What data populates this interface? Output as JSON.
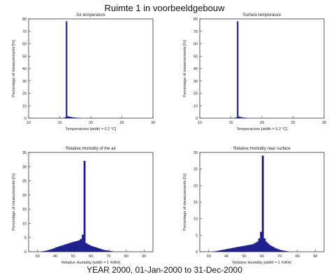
{
  "page": {
    "title": "Ruimte 1 in voorbeeldgebouw",
    "footer": "YEAR 2000, 01-Jan-2000 to 31-Dec-2000"
  },
  "colors": {
    "bar": "#1f1f8f",
    "axis": "#333333",
    "text": "#222222"
  },
  "chart_data": [
    {
      "type": "bar",
      "title": "Air temperature",
      "xlabel": "Temperatures [width = 0.2 °C]",
      "ylabel": "Percentage of measurements [%]",
      "xlim": [
        10,
        30
      ],
      "ylim": [
        0,
        80
      ],
      "xticks": [
        10,
        15,
        20,
        25,
        30
      ],
      "yticks": [
        0,
        10,
        20,
        30,
        40,
        50,
        60,
        70,
        80
      ],
      "bin_width": 0.2,
      "bins": [
        {
          "x": 15.6,
          "value": 0.3
        },
        {
          "x": 15.8,
          "value": 0.6
        },
        {
          "x": 16.0,
          "value": 78
        },
        {
          "x": 16.2,
          "value": 1.5
        },
        {
          "x": 16.4,
          "value": 1.2
        },
        {
          "x": 16.6,
          "value": 1.0
        },
        {
          "x": 16.8,
          "value": 0.8
        },
        {
          "x": 17.0,
          "value": 0.6
        },
        {
          "x": 17.2,
          "value": 0.5
        },
        {
          "x": 17.4,
          "value": 0.4
        },
        {
          "x": 17.6,
          "value": 0.3
        },
        {
          "x": 17.8,
          "value": 0.2
        },
        {
          "x": 18.0,
          "value": 0.2
        },
        {
          "x": 18.2,
          "value": 0.1
        }
      ]
    },
    {
      "type": "bar",
      "title": "Surface temperature",
      "xlabel": "Temperatures [width = 0.2 °C]",
      "ylabel": "Percentage of measurements [%]",
      "xlim": [
        10,
        30
      ],
      "ylim": [
        0,
        80
      ],
      "xticks": [
        10,
        15,
        20,
        25,
        30
      ],
      "yticks": [
        0,
        10,
        20,
        30,
        40,
        50,
        60,
        70,
        80
      ],
      "bin_width": 0.2,
      "bins": [
        {
          "x": 15.6,
          "value": 0.3
        },
        {
          "x": 15.8,
          "value": 0.5
        },
        {
          "x": 16.0,
          "value": 78
        },
        {
          "x": 16.2,
          "value": 1.2
        },
        {
          "x": 16.4,
          "value": 0.9
        },
        {
          "x": 16.6,
          "value": 0.7
        },
        {
          "x": 16.8,
          "value": 0.5
        },
        {
          "x": 17.0,
          "value": 0.4
        },
        {
          "x": 17.2,
          "value": 0.3
        },
        {
          "x": 17.4,
          "value": 0.2
        },
        {
          "x": 17.6,
          "value": 0.1
        }
      ]
    },
    {
      "type": "bar",
      "title": "Relative Humidity of the air",
      "xlabel": "Relative Humidity [width = 1 %RH]",
      "ylabel": "Percentage of measurements [%]",
      "xlim": [
        25,
        95
      ],
      "ylim": [
        0,
        35
      ],
      "xticks": [
        30,
        40,
        50,
        60,
        70,
        80,
        90
      ],
      "yticks": [
        0,
        5,
        10,
        15,
        20,
        25,
        30,
        35
      ],
      "bin_width": 1,
      "bins": [
        {
          "x": 32,
          "value": 0.1
        },
        {
          "x": 33,
          "value": 0.2
        },
        {
          "x": 34,
          "value": 0.3
        },
        {
          "x": 35,
          "value": 0.4
        },
        {
          "x": 36,
          "value": 0.6
        },
        {
          "x": 37,
          "value": 0.8
        },
        {
          "x": 38,
          "value": 1.0
        },
        {
          "x": 39,
          "value": 1.2
        },
        {
          "x": 40,
          "value": 1.5
        },
        {
          "x": 41,
          "value": 1.7
        },
        {
          "x": 42,
          "value": 1.9
        },
        {
          "x": 43,
          "value": 2.1
        },
        {
          "x": 44,
          "value": 2.3
        },
        {
          "x": 45,
          "value": 2.5
        },
        {
          "x": 46,
          "value": 2.7
        },
        {
          "x": 47,
          "value": 2.9
        },
        {
          "x": 48,
          "value": 3.1
        },
        {
          "x": 49,
          "value": 3.3
        },
        {
          "x": 50,
          "value": 3.5
        },
        {
          "x": 51,
          "value": 3.6
        },
        {
          "x": 52,
          "value": 3.8
        },
        {
          "x": 53,
          "value": 4.0
        },
        {
          "x": 54,
          "value": 4.5
        },
        {
          "x": 55,
          "value": 6.0
        },
        {
          "x": 56,
          "value": 32
        },
        {
          "x": 57,
          "value": 3.0
        },
        {
          "x": 58,
          "value": 2.6
        },
        {
          "x": 59,
          "value": 2.3
        },
        {
          "x": 60,
          "value": 2.0
        },
        {
          "x": 61,
          "value": 1.8
        },
        {
          "x": 62,
          "value": 1.6
        },
        {
          "x": 63,
          "value": 1.4
        },
        {
          "x": 64,
          "value": 1.2
        },
        {
          "x": 65,
          "value": 1.0
        },
        {
          "x": 66,
          "value": 0.8
        },
        {
          "x": 67,
          "value": 0.6
        },
        {
          "x": 68,
          "value": 0.5
        },
        {
          "x": 69,
          "value": 0.4
        },
        {
          "x": 70,
          "value": 0.3
        },
        {
          "x": 71,
          "value": 0.2
        },
        {
          "x": 72,
          "value": 0.1
        }
      ]
    },
    {
      "type": "bar",
      "title": "Relative Humidity near surface",
      "xlabel": "Relative Humidity [width = 1 %RH]",
      "ylabel": "Percentage of measurements [%]",
      "xlim": [
        25,
        95
      ],
      "ylim": [
        0,
        30
      ],
      "xticks": [
        30,
        40,
        50,
        60,
        70,
        80,
        90
      ],
      "yticks": [
        0,
        5,
        10,
        15,
        20,
        25,
        30
      ],
      "bin_width": 1,
      "bins": [
        {
          "x": 33,
          "value": 0.1
        },
        {
          "x": 34,
          "value": 0.2
        },
        {
          "x": 35,
          "value": 0.3
        },
        {
          "x": 36,
          "value": 0.4
        },
        {
          "x": 37,
          "value": 0.5
        },
        {
          "x": 38,
          "value": 0.6
        },
        {
          "x": 39,
          "value": 0.7
        },
        {
          "x": 40,
          "value": 0.8
        },
        {
          "x": 41,
          "value": 0.9
        },
        {
          "x": 42,
          "value": 1.0
        },
        {
          "x": 43,
          "value": 1.1
        },
        {
          "x": 44,
          "value": 1.2
        },
        {
          "x": 45,
          "value": 1.3
        },
        {
          "x": 46,
          "value": 1.4
        },
        {
          "x": 47,
          "value": 1.5
        },
        {
          "x": 48,
          "value": 1.6
        },
        {
          "x": 49,
          "value": 1.7
        },
        {
          "x": 50,
          "value": 1.8
        },
        {
          "x": 51,
          "value": 1.9
        },
        {
          "x": 52,
          "value": 2.0
        },
        {
          "x": 53,
          "value": 2.1
        },
        {
          "x": 54,
          "value": 2.2
        },
        {
          "x": 55,
          "value": 2.4
        },
        {
          "x": 56,
          "value": 2.7
        },
        {
          "x": 57,
          "value": 3.0
        },
        {
          "x": 58,
          "value": 4.0
        },
        {
          "x": 59,
          "value": 6.0
        },
        {
          "x": 60,
          "value": 29
        },
        {
          "x": 61,
          "value": 4.0
        },
        {
          "x": 62,
          "value": 3.0
        },
        {
          "x": 63,
          "value": 2.5
        },
        {
          "x": 64,
          "value": 2.0
        },
        {
          "x": 65,
          "value": 1.7
        },
        {
          "x": 66,
          "value": 1.4
        },
        {
          "x": 67,
          "value": 1.1
        },
        {
          "x": 68,
          "value": 0.9
        },
        {
          "x": 69,
          "value": 0.7
        },
        {
          "x": 70,
          "value": 0.5
        },
        {
          "x": 71,
          "value": 0.4
        },
        {
          "x": 72,
          "value": 0.3
        },
        {
          "x": 73,
          "value": 0.2
        },
        {
          "x": 74,
          "value": 0.1
        }
      ]
    }
  ]
}
